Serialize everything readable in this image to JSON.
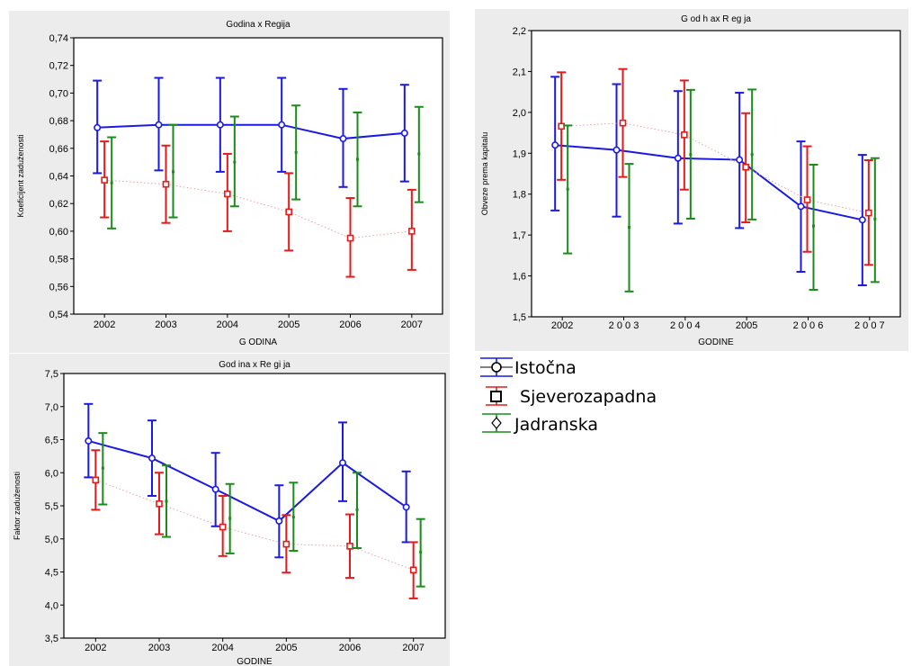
{
  "legend": {
    "items": [
      {
        "label": "Istočna",
        "color": "#1a1ae6",
        "marker": "circle"
      },
      {
        "label": " Sjeverozapadna",
        "color": "#e61a1a",
        "marker": "square"
      },
      {
        "label": "Jadranska",
        "color": "#1a8c1a",
        "marker": "diamond"
      }
    ]
  },
  "chart_data": [
    {
      "type": "line",
      "title": "Godina x Regija",
      "xlabel": "G ODINA",
      "ylabel": "Koeficijent zaduženosti",
      "categories": [
        "2002",
        "2003",
        "2004",
        "2005",
        "2006",
        "2007"
      ],
      "ylim": [
        0.54,
        0.74
      ],
      "yticks": [
        "0,54",
        "0,56",
        "0,58",
        "0,60",
        "0,62",
        "0,64",
        "0,66",
        "0,68",
        "0,70",
        "0,72",
        "0,74"
      ],
      "series": [
        {
          "color": "#1a1ae6",
          "marker": "circle",
          "line": "solid",
          "values": [
            0.675,
            0.677,
            0.677,
            0.677,
            0.667,
            0.671
          ],
          "lower": [
            0.642,
            0.644,
            0.643,
            0.643,
            0.632,
            0.636
          ],
          "upper": [
            0.709,
            0.711,
            0.711,
            0.711,
            0.703,
            0.706
          ]
        },
        {
          "color": "#e61a1a",
          "marker": "square",
          "line": "dotted",
          "values": [
            0.637,
            0.634,
            0.627,
            0.614,
            0.595,
            0.6
          ],
          "lower": [
            0.61,
            0.606,
            0.6,
            0.586,
            0.567,
            0.572
          ],
          "upper": [
            0.665,
            0.662,
            0.656,
            0.642,
            0.624,
            0.63
          ]
        },
        {
          "color": "#1a8c1a",
          "marker": "dot",
          "line": "none",
          "values": [
            0.635,
            0.643,
            0.65,
            0.657,
            0.652,
            0.656
          ],
          "lower": [
            0.602,
            0.61,
            0.618,
            0.623,
            0.618,
            0.621
          ],
          "upper": [
            0.668,
            0.677,
            0.683,
            0.691,
            0.686,
            0.69
          ]
        }
      ]
    },
    {
      "type": "line",
      "title": "G od h ax R eg ja",
      "xlabel": "GODINE",
      "ylabel": "Obveze prema kapitalu",
      "categories": [
        "2002",
        "2 0 0 3",
        "2 0 0 4",
        "2005",
        "2 0 0 6",
        "2 0 0 7"
      ],
      "ylim": [
        1.5,
        2.2
      ],
      "yticks": [
        "1,5",
        "1,6",
        "1,7",
        "1,8",
        "1,9",
        "2,0",
        "2,1",
        "2,2"
      ],
      "series": [
        {
          "color": "#1a1ae6",
          "marker": "circle",
          "line": "solid",
          "values": [
            1.92,
            1.908,
            1.888,
            1.884,
            1.77,
            1.737
          ],
          "lower": [
            1.76,
            1.745,
            1.728,
            1.717,
            1.61,
            1.577
          ],
          "upper": [
            2.087,
            2.069,
            2.052,
            2.048,
            1.929,
            1.896
          ]
        },
        {
          "color": "#e61a1a",
          "marker": "square",
          "line": "dotted",
          "values": [
            1.966,
            1.974,
            1.945,
            1.866,
            1.786,
            1.754
          ],
          "lower": [
            1.835,
            1.842,
            1.811,
            1.731,
            1.659,
            1.627
          ],
          "upper": [
            2.098,
            2.106,
            2.078,
            1.998,
            1.917,
            1.883
          ]
        },
        {
          "color": "#1a8c1a",
          "marker": "dot",
          "line": "none",
          "values": [
            1.812,
            1.719,
            1.897,
            1.897,
            1.722,
            1.739
          ],
          "lower": [
            1.655,
            1.562,
            1.74,
            1.738,
            1.566,
            1.585
          ],
          "upper": [
            1.968,
            1.874,
            2.055,
            2.056,
            1.872,
            1.888
          ]
        }
      ]
    },
    {
      "type": "line",
      "title": "God ina x Re gi ja",
      "xlabel": "GODINE",
      "ylabel": "Faktor zaduženosti",
      "categories": [
        "2002",
        "2003",
        "2004",
        "2005",
        "2006",
        "2007"
      ],
      "ylim": [
        3.5,
        7.5
      ],
      "yticks": [
        "3,5",
        "4,0",
        "4,5",
        "5,0",
        "5,5",
        "6,0",
        "6,5",
        "7,0",
        "7,5"
      ],
      "series": [
        {
          "color": "#1a1ae6",
          "marker": "circle",
          "line": "solid",
          "values": [
            6.48,
            6.22,
            5.75,
            5.27,
            6.15,
            5.48
          ],
          "lower": [
            5.93,
            5.65,
            5.19,
            4.72,
            5.57,
            4.95
          ],
          "upper": [
            7.04,
            6.79,
            6.3,
            5.81,
            6.76,
            6.02
          ]
        },
        {
          "color": "#e61a1a",
          "marker": "square",
          "line": "dotted",
          "values": [
            5.89,
            5.53,
            5.18,
            4.92,
            4.89,
            4.53
          ],
          "lower": [
            5.44,
            5.07,
            4.74,
            4.49,
            4.41,
            4.1
          ],
          "upper": [
            6.34,
            6.0,
            5.65,
            5.36,
            5.37,
            4.95
          ]
        },
        {
          "color": "#1a8c1a",
          "marker": "dot",
          "line": "none",
          "values": [
            6.07,
            5.57,
            5.31,
            5.33,
            5.44,
            4.8
          ],
          "lower": [
            5.52,
            5.03,
            4.78,
            4.82,
            4.86,
            4.28
          ],
          "upper": [
            6.6,
            6.11,
            5.83,
            5.85,
            6.0,
            5.3
          ]
        }
      ]
    }
  ]
}
